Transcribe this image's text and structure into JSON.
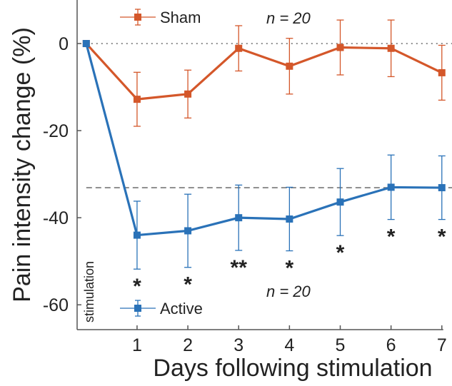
{
  "chart_data": {
    "type": "line",
    "xlabel": "Days following stimulation",
    "ylabel": "Pain intensity change (%)",
    "xlim": [
      -0.18,
      7.2
    ],
    "ylim": [
      -65.7,
      10
    ],
    "x": [
      0,
      1,
      2,
      3,
      4,
      5,
      6,
      7
    ],
    "x_tick_labels": [
      "1",
      "2",
      "3",
      "4",
      "5",
      "6",
      "7"
    ],
    "x0_label": "stimulation",
    "y_ticks": [
      0,
      -20,
      -40,
      -60
    ],
    "y_tick_labels": [
      "0",
      "-20",
      "-40",
      "-60"
    ],
    "series": [
      {
        "name": "Sham",
        "color": "#D4572A",
        "values": [
          0,
          -12.8,
          -11.6,
          -1.1,
          -5.2,
          -0.9,
          -1.1,
          -6.7
        ],
        "error": [
          0,
          6.2,
          5.5,
          5.2,
          6.4,
          6.3,
          6.5,
          6.3
        ],
        "n_label": "n = 20"
      },
      {
        "name": "Active",
        "color": "#2A72B8",
        "values": [
          0,
          -44.0,
          -43.0,
          -40.0,
          -40.3,
          -36.4,
          -33.0,
          -33.1
        ],
        "error": [
          0,
          7.8,
          8.4,
          7.5,
          7.3,
          7.7,
          7.4,
          7.3
        ],
        "n_label": "n = 20"
      }
    ],
    "reference_lines": [
      {
        "y": 0,
        "style": "dotted"
      },
      {
        "y": -33.1,
        "style": "dashed"
      }
    ],
    "significance": [
      {
        "x": 1,
        "label": "*"
      },
      {
        "x": 2,
        "label": "*"
      },
      {
        "x": 3,
        "label": "**"
      },
      {
        "x": 4,
        "label": "*"
      },
      {
        "x": 5,
        "label": "*"
      },
      {
        "x": 6,
        "label": "*"
      },
      {
        "x": 7,
        "label": "*"
      }
    ],
    "legend": [
      "top-left (Sham)",
      "bottom-left (Active)"
    ]
  }
}
